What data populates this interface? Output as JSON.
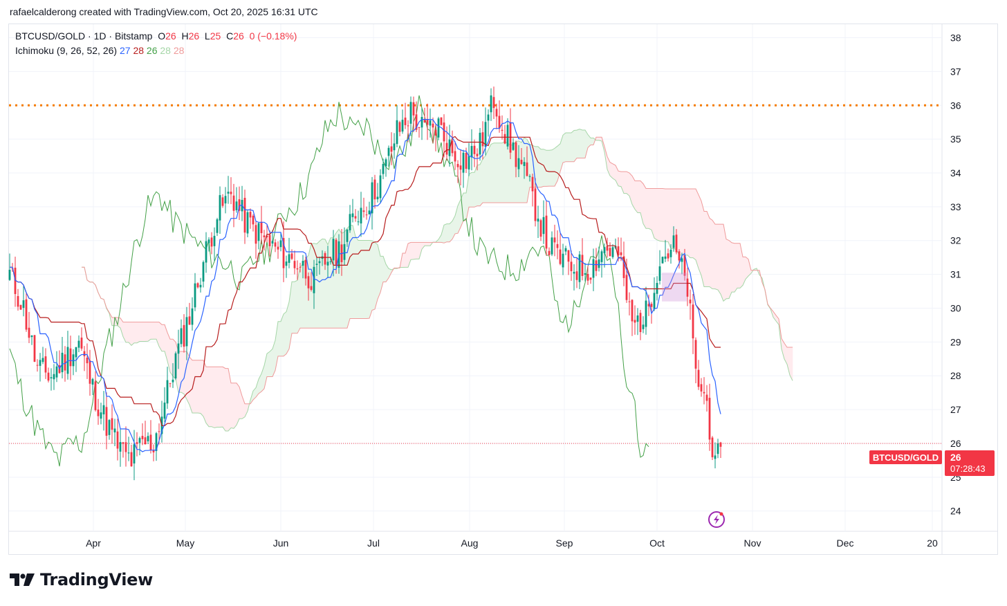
{
  "header": {
    "credit": "rafaelcalderong created with TradingView.com, Oct 20, 2025 16:31 UTC"
  },
  "legend": {
    "symbol": "BTCUSD/GOLD",
    "sep1": "·",
    "interval": "1D",
    "sep2": "·",
    "exchange": "Bitstamp",
    "o_label": "O",
    "o": "26",
    "h_label": "H",
    "h": "26",
    "l_label": "L",
    "l": "25",
    "c_label": "C",
    "c": "26",
    "change": "0 (−0.18%)",
    "indicator": "Ichimoku (9, 26, 52, 26)",
    "ind_values": [
      "27",
      "28",
      "26",
      "28",
      "28"
    ]
  },
  "price_tag": {
    "name": "BTCUSD/GOLD",
    "value": "26",
    "countdown": "07:28:43"
  },
  "logo": {
    "text": "TradingView"
  },
  "colors": {
    "up": "#089981",
    "down": "#f23645",
    "tenkan": "#2962ff",
    "kijun": "#b71c1c",
    "chikou": "#43a047",
    "spanA": "#a5d6a7",
    "spanB": "#ef9a9a",
    "cloud_bull": "#e8f5e9",
    "cloud_bear": "#ffebee",
    "resistance": "#f57c00"
  },
  "chart_data": {
    "type": "candlestick",
    "ylim": [
      23.4,
      38.4
    ],
    "y_ticks": [
      24,
      25,
      26,
      27,
      28,
      29,
      30,
      31,
      32,
      33,
      34,
      35,
      36,
      37,
      38
    ],
    "x_tick_labels": [
      "Apr",
      "May",
      "Jun",
      "Jul",
      "Aug",
      "Sep",
      "Oct",
      "Nov",
      "Dec",
      "20"
    ],
    "resistance_level": 36,
    "last_price": 26,
    "candle_keypoints": [
      [
        0,
        31.0
      ],
      [
        5,
        30.0
      ],
      [
        10,
        28.2
      ],
      [
        15,
        28.0
      ],
      [
        20,
        28.5
      ],
      [
        25,
        29.0
      ],
      [
        30,
        27.6
      ],
      [
        35,
        26.6
      ],
      [
        40,
        25.8
      ],
      [
        44,
        25.5
      ],
      [
        48,
        26.0
      ],
      [
        52,
        26.0
      ],
      [
        56,
        27.2
      ],
      [
        60,
        28.5
      ],
      [
        65,
        29.8
      ],
      [
        70,
        31.4
      ],
      [
        75,
        32.8
      ],
      [
        80,
        33.4
      ],
      [
        85,
        32.6
      ],
      [
        90,
        32.2
      ],
      [
        95,
        31.8
      ],
      [
        100,
        31.5
      ],
      [
        105,
        31.3
      ],
      [
        110,
        30.8
      ],
      [
        115,
        31.5
      ],
      [
        120,
        31.8
      ],
      [
        125,
        32.8
      ],
      [
        130,
        33.2
      ],
      [
        135,
        34.0
      ],
      [
        140,
        35.2
      ],
      [
        145,
        35.8
      ],
      [
        150,
        35.2
      ],
      [
        155,
        35.4
      ],
      [
        160,
        34.6
      ],
      [
        165,
        34.4
      ],
      [
        170,
        34.8
      ],
      [
        175,
        36.2
      ],
      [
        180,
        35.0
      ],
      [
        185,
        34.2
      ],
      [
        190,
        33.0
      ],
      [
        195,
        31.8
      ],
      [
        200,
        31.4
      ],
      [
        205,
        31.2
      ],
      [
        210,
        31.2
      ],
      [
        215,
        31.8
      ],
      [
        220,
        31.6
      ],
      [
        225,
        29.5
      ],
      [
        230,
        29.8
      ],
      [
        235,
        31.5
      ],
      [
        240,
        31.8
      ],
      [
        245,
        30.6
      ],
      [
        248,
        28.0
      ],
      [
        252,
        27.2
      ],
      [
        255,
        25.2
      ],
      [
        257,
        25.9
      ]
    ],
    "ichimoku": {
      "periods": [
        9,
        26,
        52,
        26
      ],
      "last_values": {
        "tenkan": 27,
        "kijun": 28,
        "chikou": 26,
        "span_a": 28,
        "span_b": 28
      }
    }
  }
}
